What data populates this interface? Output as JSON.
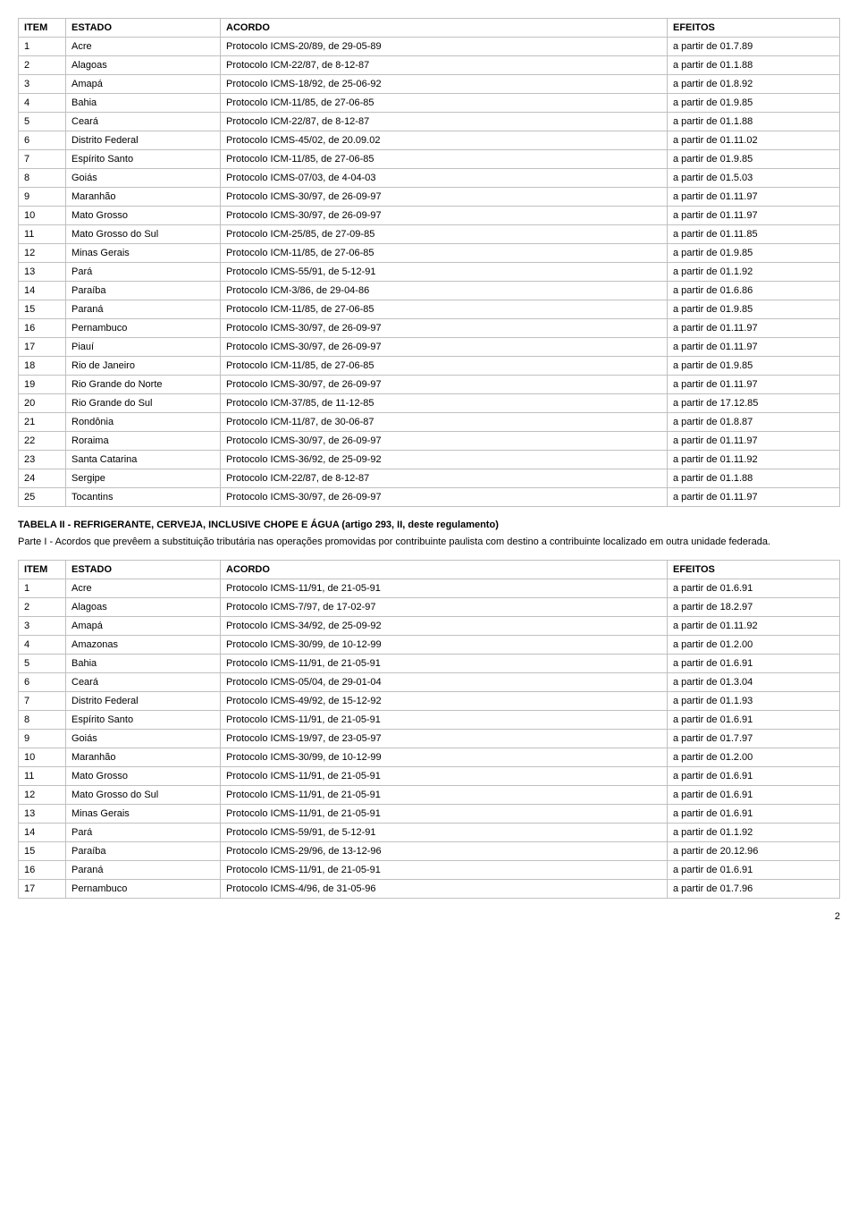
{
  "table1": {
    "headers": [
      "ITEM",
      "ESTADO",
      "ACORDO",
      "EFEITOS"
    ],
    "rows": [
      [
        "1",
        "Acre",
        "Protocolo ICMS-20/89, de 29-05-89",
        "a partir de 01.7.89"
      ],
      [
        "2",
        "Alagoas",
        "Protocolo ICM-22/87, de 8-12-87",
        "a partir de 01.1.88"
      ],
      [
        "3",
        "Amapá",
        "Protocolo ICMS-18/92, de 25-06-92",
        "a partir de 01.8.92"
      ],
      [
        "4",
        "Bahia",
        "Protocolo ICM-11/85, de 27-06-85",
        "a partir de 01.9.85"
      ],
      [
        "5",
        "Ceará",
        "Protocolo ICM-22/87, de 8-12-87",
        "a partir de 01.1.88"
      ],
      [
        "6",
        "Distrito Federal",
        "Protocolo ICMS-45/02, de 20.09.02",
        "a partir de 01.11.02"
      ],
      [
        "7",
        "Espírito Santo",
        "Protocolo ICM-11/85, de 27-06-85",
        "a partir de 01.9.85"
      ],
      [
        "8",
        "Goiás",
        "Protocolo ICMS-07/03, de 4-04-03",
        "a partir de 01.5.03"
      ],
      [
        "9",
        "Maranhão",
        "Protocolo ICMS-30/97, de 26-09-97",
        "a partir de 01.11.97"
      ],
      [
        "10",
        "Mato Grosso",
        "Protocolo ICMS-30/97, de 26-09-97",
        "a partir de 01.11.97"
      ],
      [
        "11",
        "Mato Grosso do Sul",
        "Protocolo ICM-25/85, de 27-09-85",
        "a partir de 01.11.85"
      ],
      [
        "12",
        "Minas Gerais",
        "Protocolo ICM-11/85, de 27-06-85",
        "a partir de 01.9.85"
      ],
      [
        "13",
        "Pará",
        "Protocolo ICMS-55/91, de 5-12-91",
        "a partir de 01.1.92"
      ],
      [
        "14",
        "Paraíba",
        "Protocolo ICM-3/86, de 29-04-86",
        "a partir de 01.6.86"
      ],
      [
        "15",
        "Paraná",
        "Protocolo ICM-11/85, de 27-06-85",
        "a partir de 01.9.85"
      ],
      [
        "16",
        "Pernambuco",
        "Protocolo ICMS-30/97, de 26-09-97",
        "a partir de 01.11.97"
      ],
      [
        "17",
        "Piauí",
        "Protocolo ICMS-30/97, de 26-09-97",
        "a partir de 01.11.97"
      ],
      [
        "18",
        "Rio de Janeiro",
        "Protocolo ICM-11/85, de 27-06-85",
        "a partir de 01.9.85"
      ],
      [
        "19",
        "Rio Grande do Norte",
        "Protocolo ICMS-30/97, de 26-09-97",
        "a partir de 01.11.97"
      ],
      [
        "20",
        "Rio Grande do Sul",
        "Protocolo ICM-37/85, de 11-12-85",
        "a partir de 17.12.85"
      ],
      [
        "21",
        "Rondônia",
        "Protocolo ICM-11/87, de 30-06-87",
        "a partir de 01.8.87"
      ],
      [
        "22",
        "Roraima",
        "Protocolo ICMS-30/97, de 26-09-97",
        "a partir de 01.11.97"
      ],
      [
        "23",
        "Santa Catarina",
        "Protocolo ICMS-36/92, de 25-09-92",
        "a partir de 01.11.92"
      ],
      [
        "24",
        "Sergipe",
        "Protocolo ICM-22/87, de 8-12-87",
        "a partir de 01.1.88"
      ],
      [
        "25",
        "Tocantins",
        "Protocolo ICMS-30/97, de 26-09-97",
        "a partir de 01.11.97"
      ]
    ]
  },
  "section2": {
    "title": "TABELA II - REFRIGERANTE, CERVEJA, INCLUSIVE CHOPE E ÁGUA (artigo 293, II, deste regulamento)",
    "desc": "Parte I - Acordos que prevêem a substituição tributária nas operações promovidas por contribuinte paulista com destino a contribuinte localizado em outra unidade federada."
  },
  "table2": {
    "headers": [
      "ITEM",
      "ESTADO",
      "ACORDO",
      "EFEITOS"
    ],
    "rows": [
      [
        "1",
        "Acre",
        "Protocolo ICMS-11/91, de 21-05-91",
        "a partir de 01.6.91"
      ],
      [
        "2",
        "Alagoas",
        "Protocolo ICMS-7/97, de 17-02-97",
        "a partir de 18.2.97"
      ],
      [
        "3",
        "Amapá",
        "Protocolo ICMS-34/92, de 25-09-92",
        "a partir de 01.11.92"
      ],
      [
        "4",
        "Amazonas",
        "Protocolo ICMS-30/99, de 10-12-99",
        "a partir de 01.2.00"
      ],
      [
        "5",
        "Bahia",
        "Protocolo ICMS-11/91, de 21-05-91",
        "a partir de 01.6.91"
      ],
      [
        "6",
        "Ceará",
        "Protocolo ICMS-05/04, de 29-01-04",
        "a partir de 01.3.04"
      ],
      [
        "7",
        "Distrito Federal",
        "Protocolo ICMS-49/92, de 15-12-92",
        "a partir de 01.1.93"
      ],
      [
        "8",
        "Espírito Santo",
        "Protocolo ICMS-11/91, de 21-05-91",
        "a partir de 01.6.91"
      ],
      [
        "9",
        "Goiás",
        "Protocolo ICMS-19/97, de 23-05-97",
        "a partir de 01.7.97"
      ],
      [
        "10",
        "Maranhão",
        "Protocolo ICMS-30/99, de 10-12-99",
        "a partir de 01.2.00"
      ],
      [
        "11",
        "Mato Grosso",
        "Protocolo ICMS-11/91, de 21-05-91",
        "a partir de 01.6.91"
      ],
      [
        "12",
        "Mato Grosso do Sul",
        "Protocolo ICMS-11/91, de 21-05-91",
        "a partir de 01.6.91"
      ],
      [
        "13",
        "Minas Gerais",
        "Protocolo ICMS-11/91, de 21-05-91",
        "a partir de 01.6.91"
      ],
      [
        "14",
        "Pará",
        "Protocolo ICMS-59/91, de 5-12-91",
        "a partir de 01.1.92"
      ],
      [
        "15",
        "Paraíba",
        "Protocolo ICMS-29/96, de 13-12-96",
        "a partir de 20.12.96"
      ],
      [
        "16",
        "Paraná",
        "Protocolo ICMS-11/91, de 21-05-91",
        "a partir de 01.6.91"
      ],
      [
        "17",
        "Pernambuco",
        "Protocolo ICMS-4/96, de 31-05-96",
        "a partir de 01.7.96"
      ]
    ]
  },
  "pageNumber": "2"
}
